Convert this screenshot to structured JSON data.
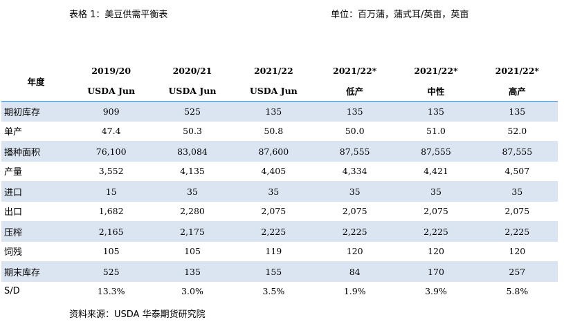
{
  "caption": {
    "left": "表格 1：美豆供需平衡表",
    "right": "单位：百万蒲，蒲式耳/英亩，英亩"
  },
  "table": {
    "row_header": "年度",
    "columns": [
      {
        "year": "2019/20",
        "sub": "USDA Jun"
      },
      {
        "year": "2020/21",
        "sub": "USDA Jun"
      },
      {
        "year": "2021/22",
        "sub": "USDA Jun"
      },
      {
        "year": "2021/22*",
        "sub": "低产"
      },
      {
        "year": "2021/22*",
        "sub": "中性"
      },
      {
        "year": "2021/22*",
        "sub": "高产"
      }
    ],
    "rows": [
      {
        "label": "期初库存",
        "values": [
          "909",
          "525",
          "135",
          "135",
          "135",
          "135"
        ]
      },
      {
        "label": "单产",
        "values": [
          "47.4",
          "50.3",
          "50.8",
          "50.0",
          "51.0",
          "52.0"
        ]
      },
      {
        "label": "播种面积",
        "values": [
          "76,100",
          "83,084",
          "87,600",
          "87,555",
          "87,555",
          "87,555"
        ]
      },
      {
        "label": "产量",
        "values": [
          "3,552",
          "4,135",
          "4,405",
          "4,334",
          "4,421",
          "4,507"
        ]
      },
      {
        "label": "进口",
        "values": [
          "15",
          "35",
          "35",
          "35",
          "35",
          "35"
        ]
      },
      {
        "label": "出口",
        "values": [
          "1,682",
          "2,280",
          "2,075",
          "2,075",
          "2,075",
          "2,075"
        ]
      },
      {
        "label": "压榨",
        "values": [
          "2,165",
          "2,175",
          "2,225",
          "2,225",
          "2,225",
          "2,225"
        ]
      },
      {
        "label": "饲残",
        "values": [
          "105",
          "105",
          "119",
          "120",
          "120",
          "120"
        ]
      },
      {
        "label": "期末库存",
        "values": [
          "525",
          "135",
          "155",
          "84",
          "170",
          "257"
        ]
      },
      {
        "label": "S/D",
        "values": [
          "13.3%",
          "3.0%",
          "3.5%",
          "1.9%",
          "3.9%",
          "5.8%"
        ]
      }
    ]
  },
  "source": "资料来源：USDA 华泰期货研究院",
  "colors": {
    "band": "#dbe5f1",
    "header_rule": "#4f81bd"
  }
}
